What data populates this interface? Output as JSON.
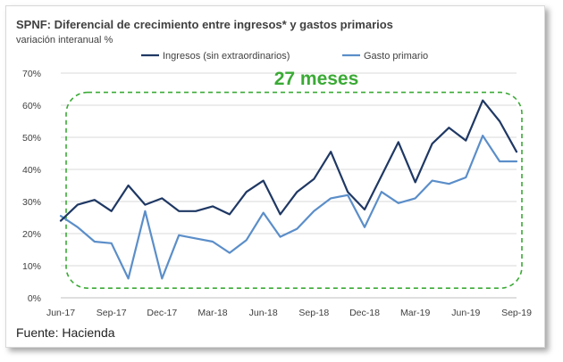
{
  "chart_data": {
    "type": "line",
    "title": "SPNF: Diferencial de crecimiento entre ingresos* y gastos primarios",
    "subtitle": "variación interanual %",
    "annotation": "27 meses",
    "source": "Fuente: Hacienda",
    "ylim": [
      0,
      70
    ],
    "yticks": [
      "0%",
      "10%",
      "20%",
      "30%",
      "40%",
      "50%",
      "60%",
      "70%"
    ],
    "xtick_labels": [
      "Jun-17",
      "Sep-17",
      "Dec-17",
      "Mar-18",
      "Jun-18",
      "Sep-18",
      "Dec-18",
      "Mar-19",
      "Jun-19",
      "Sep-19"
    ],
    "x": [
      "Jun-17",
      "Jul-17",
      "Aug-17",
      "Sep-17",
      "Oct-17",
      "Nov-17",
      "Dec-17",
      "Jan-18",
      "Feb-18",
      "Mar-18",
      "Apr-18",
      "May-18",
      "Jun-18",
      "Jul-18",
      "Aug-18",
      "Sep-18",
      "Oct-18",
      "Nov-18",
      "Dec-18",
      "Jan-19",
      "Feb-19",
      "Mar-19",
      "Apr-19",
      "May-19",
      "Jun-19",
      "Jul-19",
      "Aug-19",
      "Sep-19"
    ],
    "grid": true,
    "legend_position": "top",
    "series": [
      {
        "name": "Ingresos (sin extraordinarios)",
        "color": "#1f3864",
        "values": [
          24,
          29,
          30.5,
          27,
          35,
          29,
          31,
          27,
          27,
          28.5,
          26,
          33,
          36.5,
          26,
          33,
          37,
          45.5,
          33,
          27.5,
          38,
          48.5,
          36,
          48,
          53,
          49,
          61.5,
          55,
          45.5
        ]
      },
      {
        "name": "Gasto primario",
        "color": "#5b8ec9",
        "values": [
          25.5,
          22,
          17.5,
          17,
          6,
          27,
          6,
          19.5,
          18.5,
          17.5,
          14,
          18,
          26.5,
          19,
          21.5,
          27,
          31,
          32,
          22,
          33,
          29.5,
          31,
          36.5,
          35.5,
          37.5,
          50.5,
          42.5,
          42.5
        ]
      }
    ],
    "highlight_box": {
      "x_start": "Jun-17",
      "x_end": "Sep-19",
      "y_low": 3,
      "y_high": 64,
      "color": "#3aaa35",
      "style": "dashed"
    }
  }
}
